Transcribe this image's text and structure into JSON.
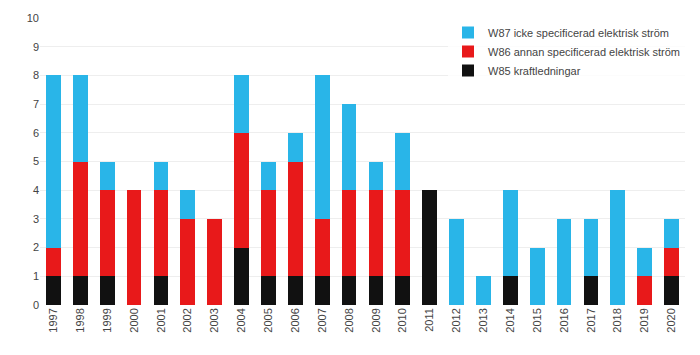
{
  "chart_data": {
    "type": "bar",
    "stacked": true,
    "categories": [
      "1997",
      "1998",
      "1999",
      "2000",
      "2001",
      "2002",
      "2003",
      "2004",
      "2005",
      "2006",
      "2007",
      "2008",
      "2009",
      "2010",
      "2011",
      "2012",
      "2013",
      "2014",
      "2015",
      "2016",
      "2017",
      "2018",
      "2019",
      "2020"
    ],
    "series": [
      {
        "name": "W85 kraftledningar",
        "color": "#111111",
        "values": [
          1,
          1,
          1,
          0,
          1,
          0,
          0,
          2,
          1,
          1,
          1,
          1,
          1,
          1,
          4,
          0,
          0,
          1,
          0,
          0,
          1,
          0,
          0,
          1
        ]
      },
      {
        "name": "W86 annan specificerad elektrisk ström",
        "color": "#e8191a",
        "values": [
          1,
          4,
          3,
          4,
          3,
          3,
          3,
          4,
          3,
          4,
          2,
          3,
          3,
          3,
          0,
          0,
          0,
          0,
          0,
          0,
          0,
          0,
          1,
          1
        ]
      },
      {
        "name": "W87 icke specificerad elektrisk ström",
        "color": "#29b5e8",
        "values": [
          6,
          3,
          1,
          0,
          1,
          1,
          0,
          2,
          1,
          1,
          5,
          3,
          1,
          2,
          0,
          3,
          1,
          3,
          2,
          3,
          2,
          4,
          1,
          1
        ]
      }
    ],
    "ylim": [
      0,
      10
    ],
    "yticks": [
      0,
      1,
      2,
      3,
      4,
      5,
      6,
      7,
      8,
      9,
      10
    ],
    "grid": true,
    "legend": "upper right"
  }
}
